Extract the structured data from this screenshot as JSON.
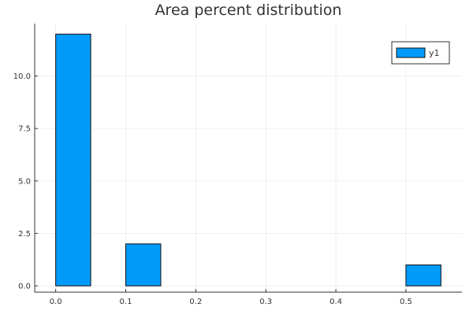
{
  "chart_data": {
    "type": "bar",
    "title": "Area percent distribution",
    "xlabel": "",
    "ylabel": "",
    "series": [
      {
        "name": "y1",
        "color": "#009AF9",
        "bins": [
          {
            "x0": 0.0,
            "x1": 0.05,
            "value": 12
          },
          {
            "x0": 0.1,
            "x1": 0.15,
            "value": 2
          },
          {
            "x0": 0.5,
            "x1": 0.55,
            "value": 1
          }
        ]
      }
    ],
    "xlim": [
      -0.03,
      0.58
    ],
    "ylim": [
      -0.3,
      12.5
    ],
    "x_ticks": [
      {
        "value": 0.0,
        "label": "0.0"
      },
      {
        "value": 0.1,
        "label": "0.1"
      },
      {
        "value": 0.2,
        "label": "0.2"
      },
      {
        "value": 0.3,
        "label": "0.3"
      },
      {
        "value": 0.4,
        "label": "0.4"
      },
      {
        "value": 0.5,
        "label": "0.5"
      }
    ],
    "y_ticks": [
      {
        "value": 0.0,
        "label": "0.0"
      },
      {
        "value": 2.5,
        "label": "2.5"
      },
      {
        "value": 5.0,
        "label": "5.0"
      },
      {
        "value": 7.5,
        "label": "7.5"
      },
      {
        "value": 10.0,
        "label": "10.0"
      }
    ],
    "grid": true,
    "legend_position": "top-right"
  }
}
